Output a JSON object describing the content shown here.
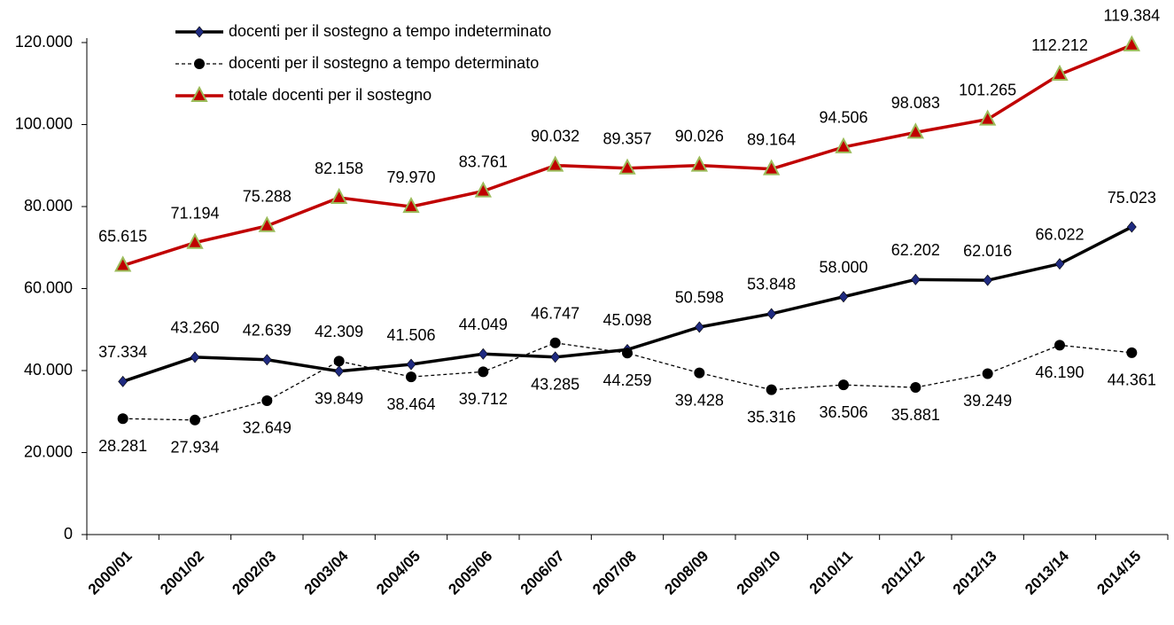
{
  "chart_data": {
    "type": "line",
    "categories": [
      "2000/01",
      "2001/02",
      "2002/03",
      "2003/04",
      "2004/05",
      "2005/06",
      "2006/07",
      "2007/08",
      "2008/09",
      "2009/10",
      "2010/11",
      "2011/12",
      "2012/13",
      "2013/14",
      "2014/15"
    ],
    "series": [
      {
        "name": "docenti per il sostegno a tempo indeterminato",
        "color": "#000000",
        "values": [
          37334,
          43260,
          42639,
          39849,
          41506,
          44049,
          43285,
          45098,
          50598,
          53848,
          58000,
          62202,
          62016,
          66022,
          75023
        ],
        "value_labels": [
          "37.334",
          "43.260",
          "42.639",
          "39.849",
          "41.506",
          "44.049",
          "43.285",
          "45.098",
          "50.598",
          "53.848",
          "58.000",
          "62.202",
          "62.016",
          "66.022",
          "75.023"
        ]
      },
      {
        "name": "docenti per il sostegno a tempo determinato",
        "color": "#000000",
        "values": [
          28281,
          27934,
          32649,
          42309,
          38464,
          39712,
          46747,
          44259,
          39428,
          35316,
          36506,
          35881,
          39249,
          46190,
          44361
        ],
        "value_labels": [
          "28.281",
          "27.934",
          "32.649",
          "42.309",
          "38.464",
          "39.712",
          "46.747",
          "44.259",
          "39.428",
          "35.316",
          "36.506",
          "35.881",
          "39.249",
          "46.190",
          "44.361"
        ]
      },
      {
        "name": "totale docenti per il sostegno",
        "color": "#c00000",
        "values": [
          65615,
          71194,
          75288,
          82158,
          79970,
          83761,
          90032,
          89357,
          90026,
          89164,
          94506,
          98083,
          101265,
          112212,
          119384
        ],
        "value_labels": [
          "65.615",
          "71.194",
          "75.288",
          "82.158",
          "79.970",
          "83.761",
          "90.032",
          "89.357",
          "90.026",
          "89.164",
          "94.506",
          "98.083",
          "101.265",
          "112.212",
          "119.384"
        ]
      }
    ],
    "ylim": [
      0,
      120000
    ],
    "yticks": [
      0,
      {
        "value": 20000,
        "label": "20.000"
      },
      {
        "value": 40000,
        "label": "40.000"
      },
      {
        "value": 60000,
        "label": "60.000"
      },
      {
        "value": 80000,
        "label": "80.000"
      },
      {
        "value": 100000,
        "label": "100.000"
      },
      {
        "value": 120000,
        "label": "120.000"
      }
    ],
    "grid": false,
    "legend": "top-left"
  }
}
